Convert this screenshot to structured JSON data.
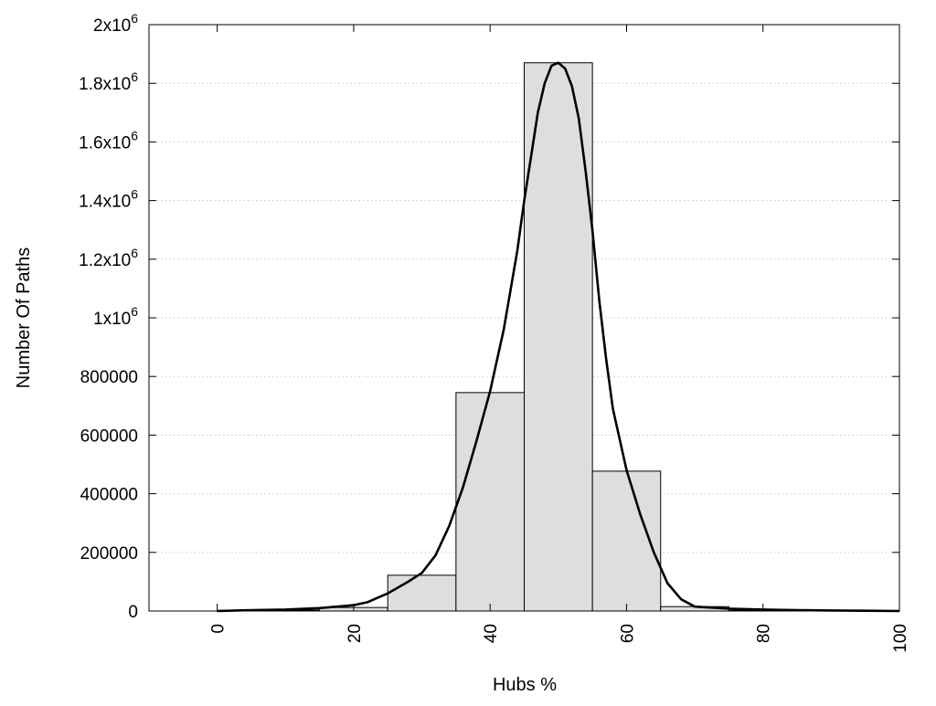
{
  "chart_data": {
    "type": "bar",
    "title": "",
    "xlabel": "Hubs %",
    "ylabel": "Number Of Paths",
    "xlim": [
      -10,
      100
    ],
    "ylim": [
      0,
      2000000
    ],
    "grid": true,
    "x_ticks": [
      0,
      20,
      40,
      60,
      80,
      100
    ],
    "y_ticks": [
      {
        "value": 0,
        "base": "0",
        "exp": ""
      },
      {
        "value": 200000,
        "base": "200000",
        "exp": ""
      },
      {
        "value": 400000,
        "base": "400000",
        "exp": ""
      },
      {
        "value": 600000,
        "base": "600000",
        "exp": ""
      },
      {
        "value": 800000,
        "base": "800000",
        "exp": ""
      },
      {
        "value": 1000000,
        "base": "1x10",
        "exp": "6"
      },
      {
        "value": 1200000,
        "base": "1.2x10",
        "exp": "6"
      },
      {
        "value": 1400000,
        "base": "1.4x10",
        "exp": "6"
      },
      {
        "value": 1600000,
        "base": "1.6x10",
        "exp": "6"
      },
      {
        "value": 1800000,
        "base": "1.8x10",
        "exp": "6"
      },
      {
        "value": 2000000,
        "base": "2x10",
        "exp": "6"
      }
    ],
    "bars": [
      {
        "x0": 5,
        "x1": 15,
        "value": 3000
      },
      {
        "x0": 15,
        "x1": 25,
        "value": 12000
      },
      {
        "x0": 25,
        "x1": 35,
        "value": 122000
      },
      {
        "x0": 35,
        "x1": 45,
        "value": 745000
      },
      {
        "x0": 45,
        "x1": 55,
        "value": 1870000
      },
      {
        "x0": 55,
        "x1": 65,
        "value": 477000
      },
      {
        "x0": 65,
        "x1": 75,
        "value": 15000
      },
      {
        "x0": 75,
        "x1": 85,
        "value": 2000
      }
    ],
    "curve": {
      "x": [
        0,
        5,
        10,
        15,
        20,
        22,
        25,
        28,
        30,
        32,
        34,
        36,
        38,
        40,
        42,
        44,
        45,
        46,
        47,
        48,
        49,
        50,
        51,
        52,
        53,
        54,
        55,
        56,
        57,
        58,
        60,
        62,
        64,
        66,
        68,
        70,
        75,
        80,
        85,
        90,
        95,
        100
      ],
      "y": [
        0,
        3000,
        5000,
        10000,
        20000,
        30000,
        60000,
        100000,
        130000,
        190000,
        290000,
        420000,
        580000,
        750000,
        960000,
        1230000,
        1400000,
        1550000,
        1700000,
        1800000,
        1860000,
        1870000,
        1850000,
        1790000,
        1680000,
        1500000,
        1300000,
        1060000,
        860000,
        690000,
        480000,
        330000,
        200000,
        95000,
        40000,
        15000,
        8000,
        5000,
        3000,
        2000,
        1000,
        0
      ]
    }
  }
}
